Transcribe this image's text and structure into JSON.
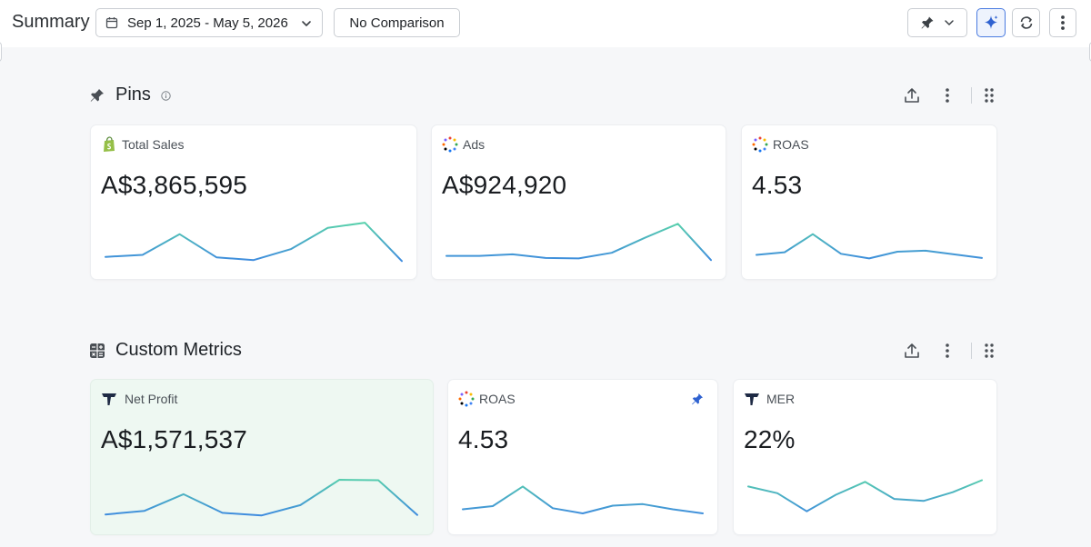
{
  "header": {
    "title": "Summary",
    "date_range": "Sep 1, 2025 - May 5, 2026",
    "comparison": "No Comparison"
  },
  "pins_section": {
    "title": "Pins",
    "cards": [
      {
        "label": "Total Sales",
        "value": "A$3,865,595",
        "source_icon": "shopify-icon",
        "spark": [
          0.18,
          0.22,
          0.62,
          0.17,
          0.12,
          0.33,
          0.74,
          0.84,
          0.1
        ]
      },
      {
        "label": "Ads",
        "value": "A$924,920",
        "source_icon": "multi-channel-icon",
        "spark": [
          0.2,
          0.2,
          0.23,
          0.16,
          0.15,
          0.26,
          0.55,
          0.82,
          0.12
        ]
      },
      {
        "label": "ROAS",
        "value": "4.53",
        "source_icon": "multi-channel-icon",
        "spark": [
          0.22,
          0.27,
          0.62,
          0.24,
          0.15,
          0.28,
          0.3,
          0.23,
          0.16
        ]
      }
    ]
  },
  "custom_section": {
    "title": "Custom Metrics",
    "cards": [
      {
        "label": "Net Profit",
        "value": "A$1,571,537",
        "source_icon": "triple-whale-icon",
        "spark": [
          0.12,
          0.19,
          0.51,
          0.15,
          0.1,
          0.3,
          0.79,
          0.78,
          0.11
        ],
        "highlighted": true
      },
      {
        "label": "ROAS",
        "value": "4.53",
        "source_icon": "multi-channel-icon",
        "spark": [
          0.22,
          0.28,
          0.66,
          0.24,
          0.14,
          0.29,
          0.32,
          0.22,
          0.14
        ],
        "pinned": true
      },
      {
        "label": "MER",
        "value": "22%",
        "source_icon": "triple-whale-icon",
        "spark": [
          0.66,
          0.53,
          0.18,
          0.5,
          0.75,
          0.42,
          0.38,
          0.55,
          0.78
        ]
      }
    ]
  },
  "colors": {
    "accent": "#3b6fd8",
    "spark_start": "#3b82e6",
    "spark_end": "#5ee0a0",
    "highlight_bg": "#eef8f2"
  }
}
